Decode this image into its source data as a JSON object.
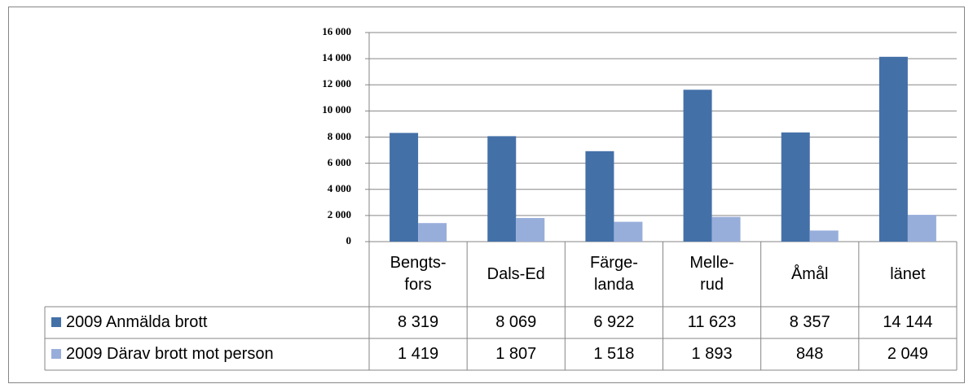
{
  "chart_data": {
    "type": "bar",
    "categories": [
      "Bengts-\nfors",
      "Dals-Ed",
      "Färge-\nlanda",
      "Melle-\nrud",
      "Åmål",
      "länet"
    ],
    "series": [
      {
        "name": "2009 Anmälda brott",
        "color": "#4470a8",
        "values": [
          8319,
          8069,
          6922,
          11623,
          8357,
          14144
        ],
        "value_labels": [
          "8 319",
          "8 069",
          "6 922",
          "11 623",
          "8 357",
          "14 144"
        ]
      },
      {
        "name": "2009 Därav brott mot person",
        "color": "#98aeda",
        "values": [
          1419,
          1807,
          1518,
          1893,
          848,
          2049
        ],
        "value_labels": [
          "1 419",
          "1 807",
          "1 518",
          "1 893",
          "848",
          "2 049"
        ]
      }
    ],
    "ylim": [
      0,
      16000
    ],
    "yticks": [
      0,
      {
        "value": 2000,
        "label": "2 000"
      },
      {
        "value": 4000,
        "label": "4 000"
      },
      {
        "value": 6000,
        "label": "6 000"
      },
      {
        "value": 8000,
        "label": "8 000"
      },
      {
        "value": 10000,
        "label": "10 000"
      },
      {
        "value": 12000,
        "label": "12 000"
      },
      {
        "value": 14000,
        "label": "14 000"
      },
      {
        "value": 16000,
        "label": "16 000"
      }
    ],
    "grid": true,
    "legend": "data-table"
  }
}
